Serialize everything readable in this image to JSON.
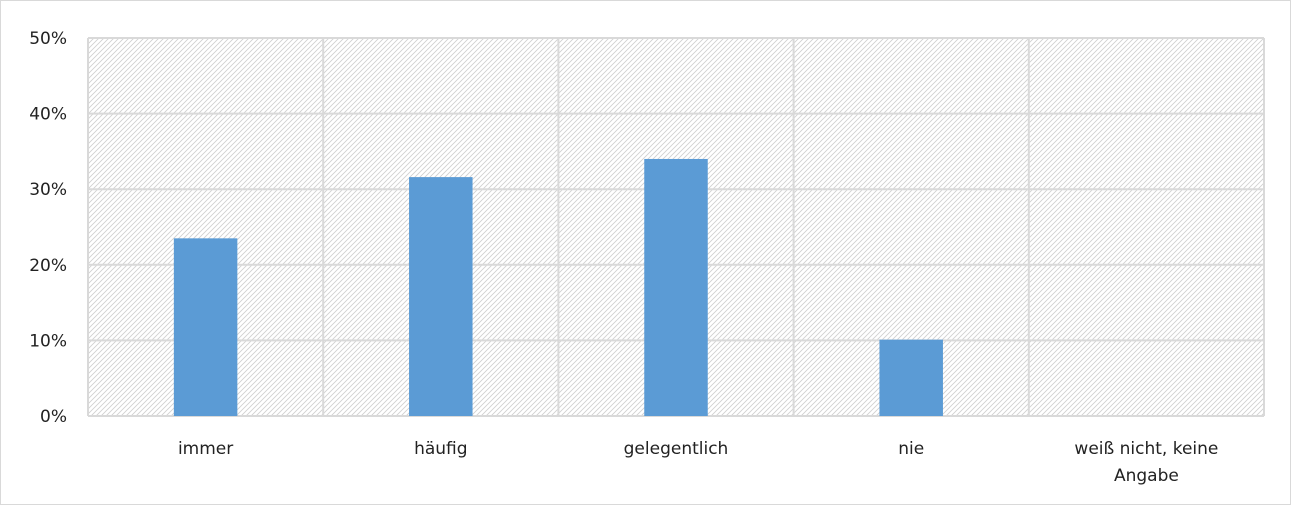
{
  "chart_data": {
    "type": "bar",
    "title": "",
    "xlabel": "",
    "ylabel": "",
    "categories": [
      [
        "immer"
      ],
      [
        "häufig"
      ],
      [
        "gelegentlich"
      ],
      [
        "nie"
      ],
      [
        "weiß nicht, keine",
        "Angabe"
      ]
    ],
    "values": [
      23.5,
      31.6,
      34,
      10.1,
      0
    ],
    "value_format": "percent",
    "ylim": [
      0,
      50
    ],
    "yticks": [
      0,
      10,
      20,
      30,
      40,
      50
    ],
    "ytick_labels": [
      "0%",
      "10%",
      "20%",
      "30%",
      "40%",
      "50%"
    ],
    "grid": true,
    "legend": "none",
    "colors": {
      "bar": "#5b9bd5",
      "grid": "#d9d9d9",
      "hatch": "#cfcfcf",
      "plot_background": "#ffffff"
    }
  }
}
